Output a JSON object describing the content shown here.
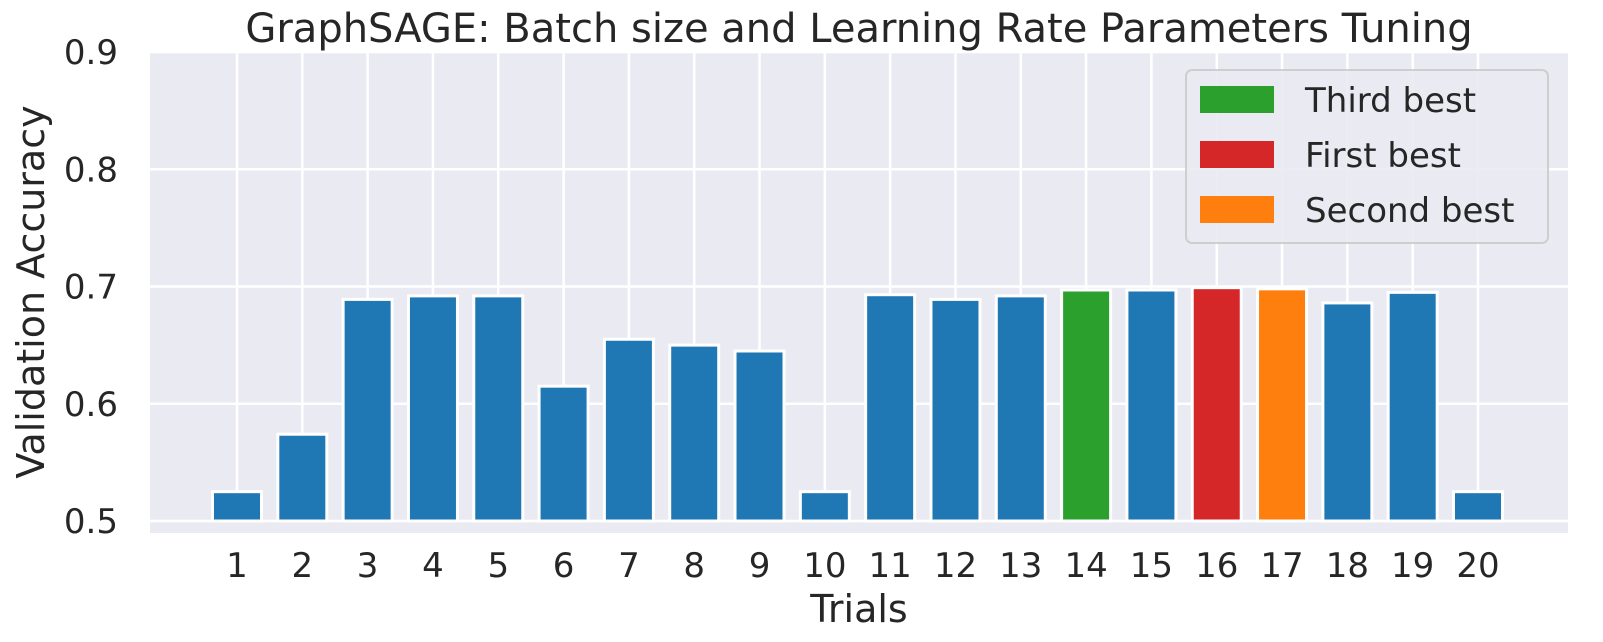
{
  "chart_data": {
    "type": "bar",
    "title": "GraphSAGE: Batch size and Learning Rate Parameters Tuning",
    "xlabel": "Trials",
    "ylabel": "Validation Accuracy",
    "ylim": [
      0.5,
      0.9
    ],
    "yticks": [
      "0.5",
      "0.6",
      "0.7",
      "0.8",
      "0.9"
    ],
    "categories": [
      "1",
      "2",
      "3",
      "4",
      "5",
      "6",
      "7",
      "8",
      "9",
      "10",
      "11",
      "12",
      "13",
      "14",
      "15",
      "16",
      "17",
      "18",
      "19",
      "20"
    ],
    "values": [
      0.525,
      0.574,
      0.689,
      0.692,
      0.692,
      0.615,
      0.655,
      0.65,
      0.645,
      0.525,
      0.693,
      0.689,
      0.692,
      0.697,
      0.697,
      0.699,
      0.698,
      0.686,
      0.695,
      0.525
    ],
    "highlight": {
      "14": "third",
      "16": "first",
      "17": "second"
    },
    "colors": {
      "default": "#1f77b4",
      "first": "#d62728",
      "second": "#ff7f0e",
      "third": "#2ca02c",
      "plot_background": "#eaeaf2",
      "grid": "#ffffff"
    },
    "legend": {
      "position": "upper right",
      "entries": [
        {
          "label": "Third best",
          "color": "#2ca02c"
        },
        {
          "label": "First best",
          "color": "#d62728"
        },
        {
          "label": "Second best",
          "color": "#ff7f0e"
        }
      ]
    },
    "grid": true
  }
}
